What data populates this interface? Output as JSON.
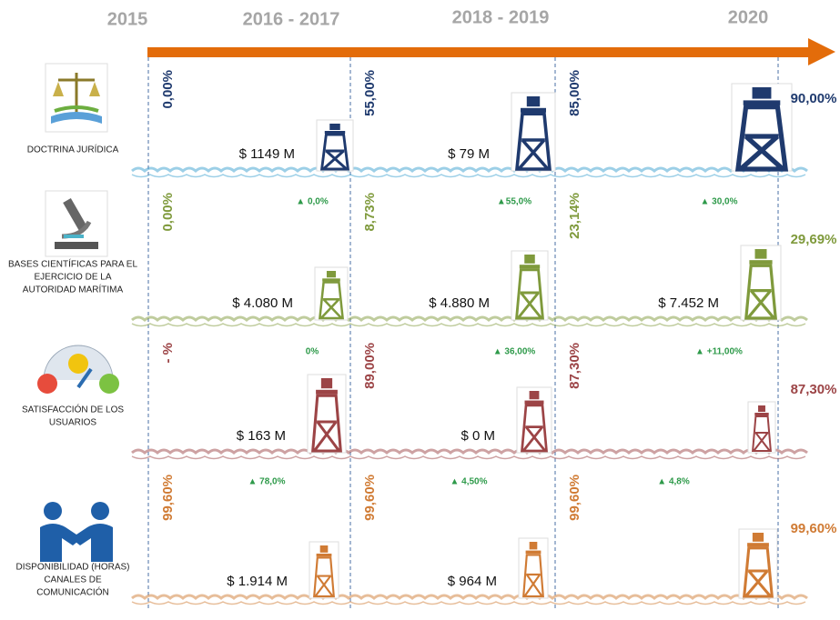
{
  "header": {
    "years": [
      "2015",
      "2016 - 2017",
      "2018 - 2019",
      "2020"
    ]
  },
  "rows": [
    {
      "label": [
        "DOCTRINA JURÍDICA"
      ],
      "color": "#1f3a6e",
      "periods": [
        {
          "percent": "0,00%",
          "budget": "$ 1149 M"
        },
        {
          "percent": "55,00%",
          "budget": "$ 79 M"
        },
        {
          "percent": "85,00%"
        }
      ],
      "final": "90,00%"
    },
    {
      "label": [
        "BASES CIENTÍFICAS PARA EL",
        "EJERCICIO DE LA",
        "AUTORIDAD MARÍTIMA"
      ],
      "color": "#7f9a3c",
      "periods": [
        {
          "percent": "0,00%",
          "budget": "$ 4.080 M",
          "change": "▲ 0,0%"
        },
        {
          "percent": "8,73%",
          "budget": "$ 4.880 M",
          "change": "▲55,0%"
        },
        {
          "percent": "23,14%",
          "budget": "$ 7.452 M",
          "change": "▲ 30,0%"
        }
      ],
      "final": "29,69%"
    },
    {
      "label": [
        "SATISFACCIÓN DE LOS",
        "USUARIOS"
      ],
      "color": "#9c4446",
      "periods": [
        {
          "percent": "- %",
          "budget": "$ 163 M",
          "change": "0%"
        },
        {
          "percent": "89,00%",
          "budget": "$ 0 M",
          "change": "▲ 36,00%"
        },
        {
          "percent": "87,30%",
          "change": "▲ +11,00%"
        }
      ],
      "final": "87,30%"
    },
    {
      "label": [
        "DISPONIBILIDAD (HORAS)",
        "CANALES DE",
        "COMUNICACIÓN"
      ],
      "color": "#d07b34",
      "periods": [
        {
          "percent": "99,60%",
          "budget": "$ 1.914 M",
          "change": "▲ 78,0%"
        },
        {
          "percent": "99,60%",
          "budget": "$ 964 M",
          "change": "▲ 4,50%"
        },
        {
          "percent": "99,60%",
          "change": "▲ 4,8%"
        }
      ],
      "final": "99,60%"
    }
  ]
}
